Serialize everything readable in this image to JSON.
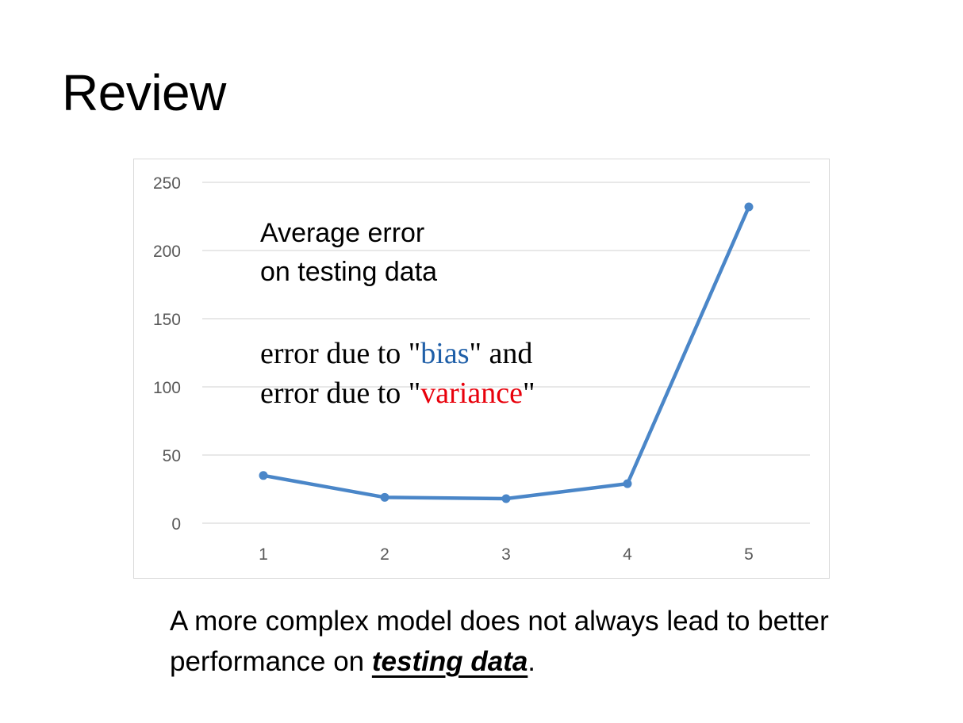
{
  "slide": {
    "title": "Review",
    "caption": {
      "before": "A more complex model does not always lead to better performance on ",
      "emphasis": "testing data",
      "after": "."
    }
  },
  "annotation": {
    "line1": "Average error",
    "line2": "on testing data",
    "line3_pre": "error due to \"",
    "line3_word": "bias",
    "line3_post": "\" and",
    "line4_pre": "error due to \"",
    "line4_word": "variance",
    "line4_post": "\"",
    "bias_color": "#1f5fa8",
    "variance_color": "#e8000b"
  },
  "chart_data": {
    "type": "line",
    "categories": [
      "1",
      "2",
      "3",
      "4",
      "5"
    ],
    "series": [
      {
        "values": [
          35,
          19,
          18,
          29,
          232
        ],
        "color": "#4a86c8"
      }
    ],
    "ylim": [
      0,
      250
    ],
    "yticks": [
      0,
      50,
      100,
      150,
      200,
      250
    ],
    "grid": true,
    "xlabel": "",
    "ylabel": "",
    "gridline_color": "#d9d9d9",
    "tick_label_color": "#595959"
  }
}
